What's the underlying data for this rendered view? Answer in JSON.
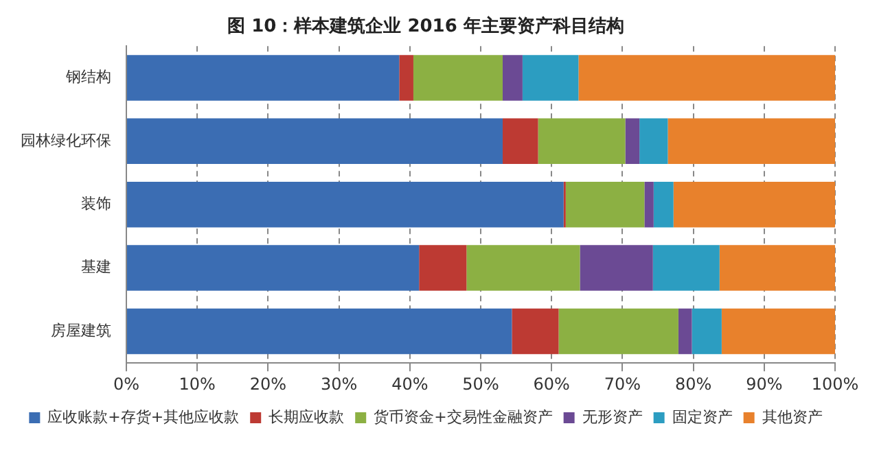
{
  "chart_data": {
    "type": "bar",
    "orientation": "horizontal",
    "stacked": true,
    "title": "图 10：样本建筑企业 2016 年主要资产科目结构",
    "categories": [
      "钢结构",
      "园林绿化环保",
      "装饰",
      "基建",
      "房屋建筑"
    ],
    "series": [
      {
        "name": "应收账款+存货+其他应收款",
        "color": "#3b6db3",
        "values": [
          38.5,
          53.1,
          61.7,
          41.3,
          54.4
        ]
      },
      {
        "name": "长期应收款",
        "color": "#bd3a33",
        "values": [
          2.0,
          5.0,
          0.3,
          6.7,
          6.6
        ]
      },
      {
        "name": "货币资金+交易性金融资产",
        "color": "#8cb043",
        "values": [
          12.6,
          12.3,
          11.1,
          16.0,
          16.9
        ]
      },
      {
        "name": "无形资产",
        "color": "#6b4a94",
        "values": [
          2.8,
          2.0,
          1.3,
          10.3,
          1.9
        ]
      },
      {
        "name": "固定资产",
        "color": "#2c9dc1",
        "values": [
          7.9,
          4.0,
          2.8,
          9.4,
          4.2
        ]
      },
      {
        "name": "其他资产",
        "color": "#e8812c",
        "values": [
          36.2,
          23.6,
          22.8,
          16.3,
          16.0
        ]
      }
    ],
    "xlim": [
      0,
      100
    ],
    "xticks": [
      {
        "value": 0,
        "label": "0%"
      },
      {
        "value": 10,
        "label": "10%"
      },
      {
        "value": 20,
        "label": "20%"
      },
      {
        "value": 30,
        "label": "30%"
      },
      {
        "value": 40,
        "label": "40%"
      },
      {
        "value": 50,
        "label": "50%"
      },
      {
        "value": 60,
        "label": "60%"
      },
      {
        "value": 70,
        "label": "70%"
      },
      {
        "value": 80,
        "label": "80%"
      },
      {
        "value": 90,
        "label": "90%"
      },
      {
        "value": 100,
        "label": "100%"
      }
    ],
    "grid": "x",
    "legend": "bottom"
  }
}
